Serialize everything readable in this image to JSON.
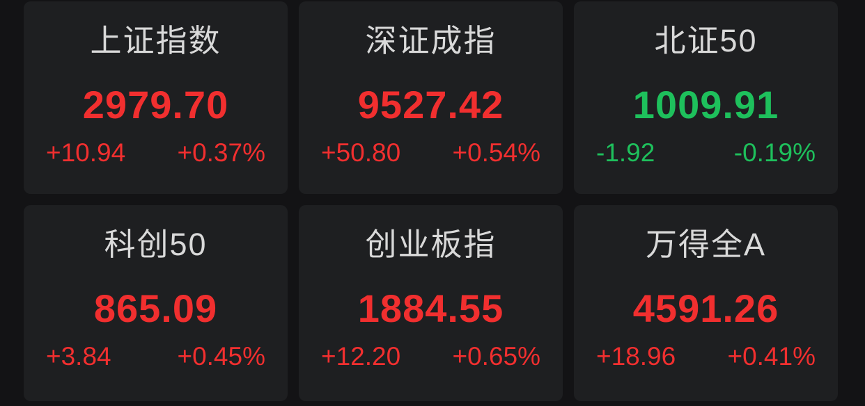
{
  "theme": {
    "page_bg": "#131315",
    "card_bg": "#1e1f21",
    "name_color": "#d9d9d9",
    "up_color": "#f12f2f",
    "down_color": "#1ec05c"
  },
  "board": {
    "indices": [
      {
        "name": "上证指数",
        "value": "2979.70",
        "change": "+10.94",
        "change_pct": "+0.37%",
        "direction": "up"
      },
      {
        "name": "深证成指",
        "value": "9527.42",
        "change": "+50.80",
        "change_pct": "+0.54%",
        "direction": "up"
      },
      {
        "name": "北证50",
        "value": "1009.91",
        "change": "-1.92",
        "change_pct": "-0.19%",
        "direction": "down"
      },
      {
        "name": "科创50",
        "value": "865.09",
        "change": "+3.84",
        "change_pct": "+0.45%",
        "direction": "up"
      },
      {
        "name": "创业板指",
        "value": "1884.55",
        "change": "+12.20",
        "change_pct": "+0.65%",
        "direction": "up"
      },
      {
        "name": "万得全A",
        "value": "4591.26",
        "change": "+18.96",
        "change_pct": "+0.41%",
        "direction": "up"
      }
    ]
  }
}
